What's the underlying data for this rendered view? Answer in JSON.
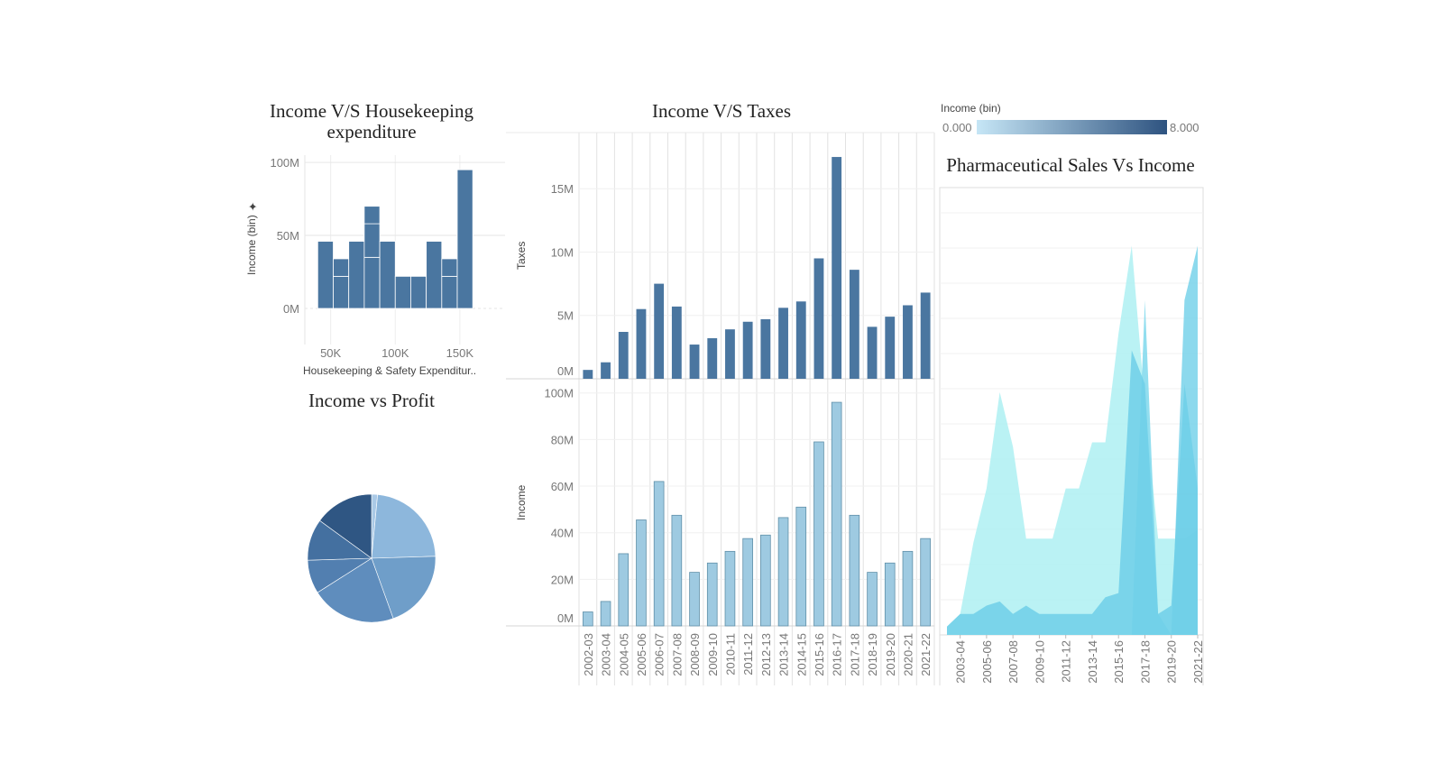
{
  "colors": {
    "dark_blue": "#4a76a0",
    "light_blue": "#9ecae1",
    "cyan_light": "#aef0f2",
    "cyan_mid": "#7fd8ec",
    "cyan_strong": "#6fcfe8",
    "legend_start": "#c6e6f6",
    "legend_end": "#2e5380",
    "pie": [
      "#aac9e6",
      "#8db7dc",
      "#6f9ec9",
      "#5f8dbd",
      "#527fb0",
      "#4470a0",
      "#2f5683"
    ]
  },
  "chart_data": [
    {
      "type": "bar",
      "title": "Income V/S Housekeeping expenditure",
      "title_lines": [
        "Income V/S Housekeeping",
        "expenditure"
      ],
      "xlabel": "Housekeeping & Safety Expenditur..",
      "ylabel": "Income (bin)",
      "y_marker_icon": "pin-icon",
      "x_ticks": [
        "50K",
        "100K",
        "150K"
      ],
      "x_tick_values": [
        50000,
        100000,
        150000
      ],
      "y_ticks": [
        "100M",
        "50M",
        "0M"
      ],
      "y_tick_values": [
        100,
        50,
        0
      ],
      "xlim": [
        30000,
        185000
      ],
      "ylim": [
        0,
        105
      ],
      "bins": [
        {
          "x0": 40000,
          "x1": 52000,
          "stack": [
            46
          ]
        },
        {
          "x0": 52000,
          "x1": 64000,
          "stack": [
            22,
            12
          ]
        },
        {
          "x0": 64000,
          "x1": 76000,
          "stack": [
            46
          ]
        },
        {
          "x0": 76000,
          "x1": 88000,
          "stack": [
            35,
            23,
            12
          ]
        },
        {
          "x0": 88000,
          "x1": 100000,
          "stack": [
            46
          ]
        },
        {
          "x0": 100000,
          "x1": 112000,
          "stack": [
            22
          ]
        },
        {
          "x0": 112000,
          "x1": 124000,
          "stack": [
            22
          ]
        },
        {
          "x0": 124000,
          "x1": 136000,
          "stack": [
            46
          ]
        },
        {
          "x0": 136000,
          "x1": 148000,
          "stack": [
            22,
            12
          ]
        },
        {
          "x0": 148000,
          "x1": 160000,
          "stack": [
            95
          ]
        }
      ]
    },
    {
      "type": "bar",
      "title": "Income V/S Taxes",
      "categories": [
        "2002-03",
        "2003-04",
        "2004-05",
        "2005-06",
        "2006-07",
        "2007-08",
        "2008-09",
        "2009-10",
        "2010-11",
        "2011-12",
        "2012-13",
        "2013-14",
        "2014-15",
        "2015-16",
        "2016-17",
        "2017-18",
        "2018-19",
        "2019-20",
        "2020-21",
        "2021-22"
      ],
      "series": [
        {
          "name": "Taxes",
          "ylabel": "Taxes",
          "values": [
            0.7,
            1.3,
            3.7,
            5.5,
            7.5,
            5.7,
            2.7,
            3.2,
            3.9,
            4.5,
            4.7,
            5.6,
            6.1,
            9.5,
            17.5,
            8.6,
            4.1,
            4.9,
            5.8,
            6.8
          ],
          "unit": "M",
          "y_ticks": [
            "15M",
            "10M",
            "5M",
            "0M"
          ],
          "y_tick_values": [
            15,
            10,
            5,
            0
          ],
          "ylim": [
            0,
            18.5
          ]
        },
        {
          "name": "Income",
          "ylabel": "Income",
          "values": [
            6,
            10.5,
            31,
            45.5,
            62,
            47.5,
            23,
            27,
            32,
            37.5,
            39,
            46.5,
            51,
            79,
            96,
            47.5,
            23,
            27,
            32,
            37.5
          ],
          "unit": "M",
          "y_ticks": [
            "100M",
            "80M",
            "60M",
            "40M",
            "20M",
            "0M"
          ],
          "y_tick_values": [
            100,
            80,
            60,
            40,
            20,
            0
          ],
          "ylim": [
            0,
            103
          ]
        }
      ]
    },
    {
      "type": "pie",
      "title": "Income vs Profit",
      "values": [
        1.5,
        23,
        20,
        21.5,
        8.5,
        10.5,
        15
      ]
    },
    {
      "type": "area",
      "title": "Pharmaceutical Sales Vs Income",
      "legend_title": "Income (bin)",
      "legend_min": "0.000",
      "legend_max": "8.000",
      "x": [
        "2002-03",
        "2003-04",
        "2004-05",
        "2005-06",
        "2006-07",
        "2007-08",
        "2008-09",
        "2009-10",
        "2010-11",
        "2011-12",
        "2012-13",
        "2013-14",
        "2014-15",
        "2015-16",
        "2016-17",
        "2017-18",
        "2018-19",
        "2019-20",
        "2020-21",
        "2021-22"
      ],
      "x_tick_labels": [
        "2003-04",
        "2005-06",
        "2007-08",
        "2009-10",
        "2011-12",
        "2013-14",
        "2015-16",
        "2017-18",
        "2019-20",
        "2021-22"
      ],
      "ylim": [
        0,
        100
      ],
      "series": [
        {
          "name": "bin-light",
          "values": [
            2,
            5,
            22,
            35,
            58,
            45,
            23,
            23,
            23,
            35,
            35,
            46,
            46,
            72,
            93,
            55,
            23,
            23,
            23,
            25
          ]
        },
        {
          "name": "bin-mid",
          "values": [
            0,
            0,
            0,
            0,
            0,
            0,
            0,
            0,
            0,
            0,
            0,
            0,
            0,
            0,
            0,
            80,
            5,
            0,
            0,
            0
          ]
        },
        {
          "name": "bin-strong",
          "values": [
            0,
            0,
            0,
            0,
            0,
            0,
            0,
            0,
            0,
            0,
            0,
            0,
            0,
            0,
            0,
            0,
            0,
            0,
            80,
            93
          ]
        },
        {
          "name": "base",
          "values": [
            2,
            5,
            5,
            7,
            8,
            5,
            7,
            5,
            5,
            5,
            5,
            5,
            9,
            10,
            68,
            60,
            5,
            7,
            60,
            35
          ]
        }
      ]
    }
  ]
}
